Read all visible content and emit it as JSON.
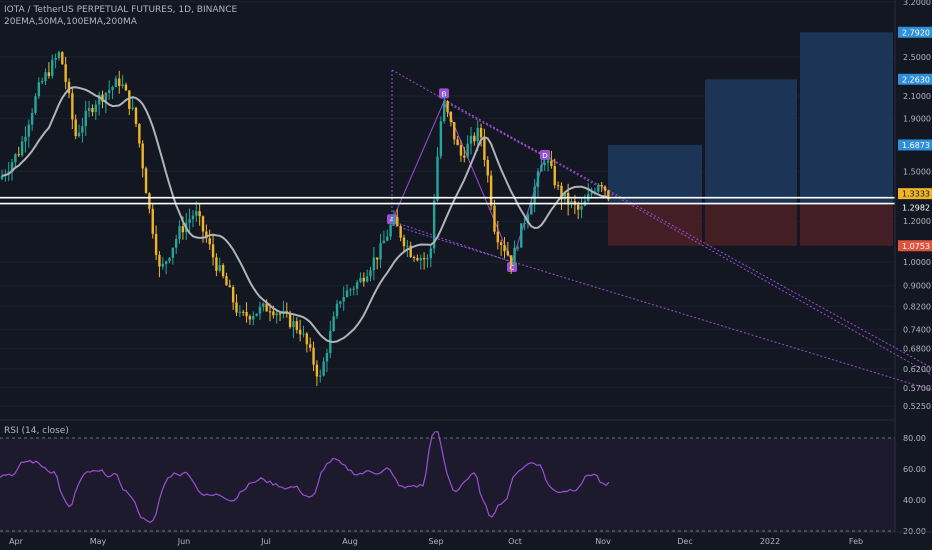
{
  "header": {
    "symbol_line": "IOTA / TetherUS PERPETUAL FUTURES, 1D, BINANCE",
    "indicators_line": "20EMA,50MA,100EMA,200MA"
  },
  "rsi_label": "RSI (14, close)",
  "colors": {
    "background": "#131722",
    "up": "#26a69a",
    "down": "#f0b429",
    "ma_line": "#b0b3b8",
    "pattern": "#9c4fd6",
    "target_zone": "#1e3a5f",
    "stop_zone": "#4a1f26",
    "rsi_line": "#9c4fd6",
    "text": "#b2b5be"
  },
  "price_axis": {
    "scale": "log",
    "ticks": [
      "3.2000",
      "2.5000",
      "2.1000",
      "1.9000",
      "1.5000",
      "1.2000",
      "1.0000",
      "0.9000",
      "0.8200",
      "0.7400",
      "0.6800",
      "0.6200",
      "0.5700",
      "0.5250"
    ]
  },
  "price_tags": [
    {
      "text": "2.7920",
      "bg": "#2f8fd8",
      "fg": "#ffffff"
    },
    {
      "text": "2.2630",
      "bg": "#2f8fd8",
      "fg": "#ffffff"
    },
    {
      "text": "1.6873",
      "bg": "#2f8fd8",
      "fg": "#ffffff"
    },
    {
      "text": "1.3333",
      "bg": "#f0b429",
      "fg": "#131722"
    },
    {
      "text": "1.2982",
      "bg": "#131722",
      "fg": "#ffffff"
    },
    {
      "text": "1.0753",
      "bg": "#e0533d",
      "fg": "#ffffff"
    }
  ],
  "rsi_axis": {
    "ticks": [
      "80.00",
      "60.00",
      "40.00",
      "20.00"
    ]
  },
  "time_axis": [
    "Apr",
    "May",
    "Jun",
    "Jul",
    "Aug",
    "Sep",
    "Oct",
    "Nov",
    "Dec",
    "2022",
    "Feb"
  ],
  "harmonic_labels": [
    "A",
    "B",
    "C",
    "D"
  ],
  "chart_data": {
    "type": "candlestick",
    "symbol": "IOTA / TetherUS PERPETUAL FUTURES",
    "timeframe": "1D",
    "y_scale": "log",
    "last_price": 1.3333,
    "support_resistance_levels": [
      1.3333,
      1.2982
    ],
    "targets": [
      1.6873,
      2.263,
      2.792
    ],
    "stop": 1.0753,
    "harmonic_pattern": {
      "A": {
        "month": "Aug",
        "price": 1.2
      },
      "B": {
        "month": "Sep",
        "price": 2.05
      },
      "C": {
        "month": "Oct",
        "price": 1.0
      },
      "D": {
        "month": "Oct",
        "price": 1.6
      }
    },
    "rsi": {
      "period": 14,
      "upper": 80,
      "lower": 20
    }
  }
}
